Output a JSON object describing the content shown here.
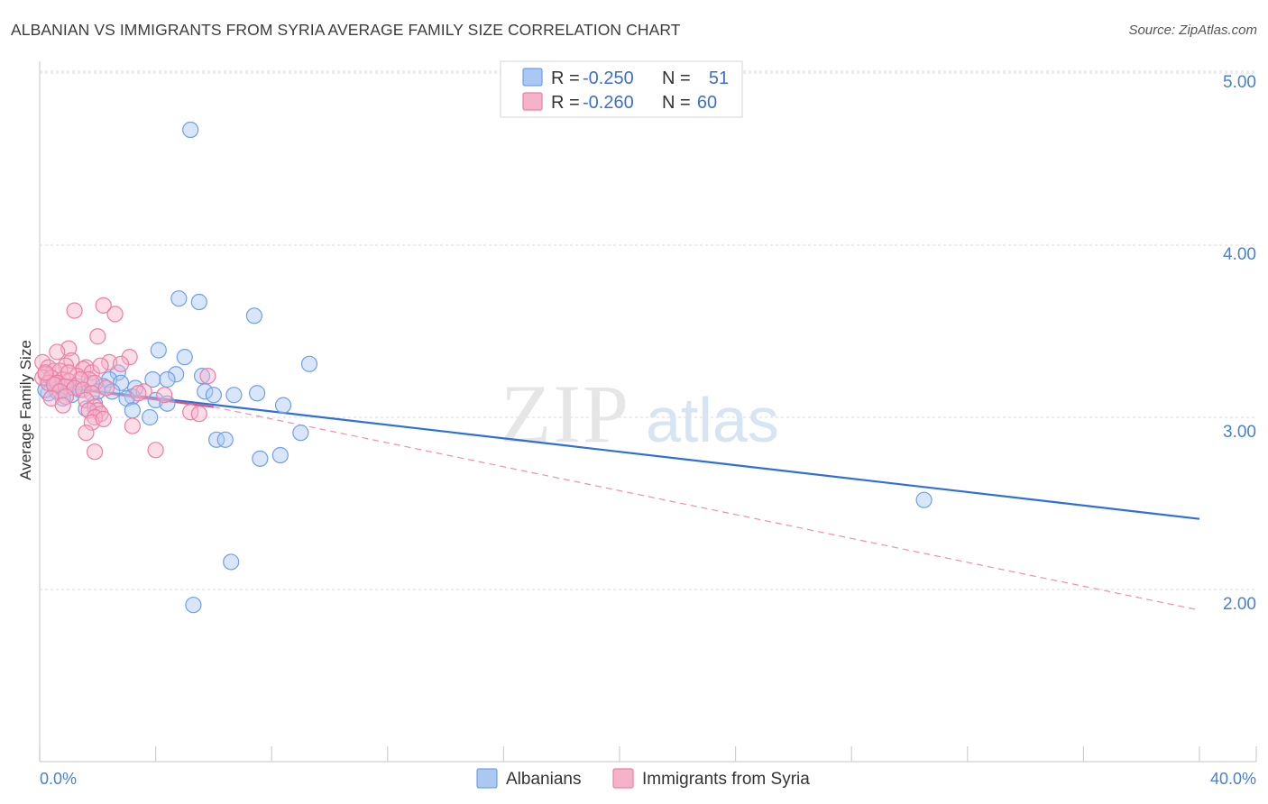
{
  "header": {
    "title": "ALBANIAN VS IMMIGRANTS FROM SYRIA AVERAGE FAMILY SIZE CORRELATION CHART",
    "source": "Source: ZipAtlas.com"
  },
  "watermark": {
    "zip": "ZIP",
    "atlas": "atlas"
  },
  "chart_data": {
    "type": "scatter",
    "title": "ALBANIAN VS IMMIGRANTS FROM SYRIA AVERAGE FAMILY SIZE CORRELATION CHART",
    "xlabel": "",
    "ylabel": "Average Family Size",
    "xlim": [
      0,
      40
    ],
    "ylim": [
      1.0,
      5.1
    ],
    "x_tick_labels": [
      "0.0%",
      "40.0%"
    ],
    "y_ticks": [
      2.0,
      3.0,
      4.0,
      5.0
    ],
    "y_tick_labels": [
      "2.00",
      "3.00",
      "4.00",
      "5.00"
    ],
    "grid": true,
    "legend_position": "top-center",
    "stats": [
      {
        "r_label": "R =",
        "r_value": "-0.250",
        "n_label": "N =",
        "n_value": "51"
      },
      {
        "r_label": "R =",
        "r_value": "-0.260",
        "n_label": "N =",
        "n_value": "60"
      }
    ],
    "series": [
      {
        "name": "Albanians",
        "color": "#6fa0e6",
        "fill": "#aac8f2",
        "trend": {
          "x0": 0.0,
          "y0": 3.19,
          "x1": 40.0,
          "y1": 2.41,
          "style": "solid",
          "color": "#2f6fd6"
        },
        "points": [
          [
            5.2,
            4.67
          ],
          [
            4.8,
            3.69
          ],
          [
            5.5,
            3.67
          ],
          [
            7.4,
            3.59
          ],
          [
            4.1,
            3.39
          ],
          [
            5.0,
            3.35
          ],
          [
            9.3,
            3.31
          ],
          [
            2.7,
            3.26
          ],
          [
            4.7,
            3.25
          ],
          [
            5.6,
            3.24
          ],
          [
            2.4,
            3.22
          ],
          [
            3.9,
            3.22
          ],
          [
            4.4,
            3.22
          ],
          [
            2.8,
            3.2
          ],
          [
            0.5,
            3.2
          ],
          [
            0.7,
            3.18
          ],
          [
            1.3,
            3.18
          ],
          [
            2.2,
            3.18
          ],
          [
            1.8,
            3.2
          ],
          [
            3.3,
            3.17
          ],
          [
            0.9,
            3.16
          ],
          [
            2.5,
            3.15
          ],
          [
            5.7,
            3.15
          ],
          [
            6.0,
            3.13
          ],
          [
            6.7,
            3.13
          ],
          [
            7.5,
            3.14
          ],
          [
            0.3,
            3.14
          ],
          [
            0.6,
            3.15
          ],
          [
            1.1,
            3.13
          ],
          [
            3.2,
            3.12
          ],
          [
            4.0,
            3.1
          ],
          [
            0.8,
            3.11
          ],
          [
            3.0,
            3.11
          ],
          [
            1.9,
            3.08
          ],
          [
            4.4,
            3.08
          ],
          [
            8.4,
            3.07
          ],
          [
            3.2,
            3.04
          ],
          [
            1.6,
            3.05
          ],
          [
            3.8,
            3.0
          ],
          [
            9.0,
            2.91
          ],
          [
            6.1,
            2.87
          ],
          [
            6.4,
            2.87
          ],
          [
            8.3,
            2.78
          ],
          [
            7.6,
            2.76
          ],
          [
            30.5,
            2.52
          ],
          [
            6.6,
            2.16
          ],
          [
            5.3,
            1.91
          ],
          [
            0.2,
            3.16
          ],
          [
            1.4,
            3.16
          ],
          [
            2.0,
            3.15
          ],
          [
            0.4,
            3.23
          ]
        ]
      },
      {
        "name": "Immigrants from Syria",
        "color": "#ec7fa4",
        "fill": "#f5b3ca",
        "trend": {
          "x0": 0.0,
          "y0": 3.19,
          "x1": 6.0,
          "y1": 3.06,
          "style": "solid",
          "color": "#e0507e",
          "ext_x1": 40.0,
          "ext_y1": 1.88,
          "ext_style": "dashed"
        },
        "points": [
          [
            2.2,
            3.65
          ],
          [
            1.2,
            3.62
          ],
          [
            2.6,
            3.6
          ],
          [
            2.0,
            3.47
          ],
          [
            1.0,
            3.4
          ],
          [
            0.6,
            3.38
          ],
          [
            3.1,
            3.35
          ],
          [
            0.1,
            3.32
          ],
          [
            1.1,
            3.33
          ],
          [
            2.4,
            3.32
          ],
          [
            2.8,
            3.31
          ],
          [
            0.9,
            3.3
          ],
          [
            1.6,
            3.29
          ],
          [
            0.3,
            3.29
          ],
          [
            1.5,
            3.28
          ],
          [
            0.5,
            3.27
          ],
          [
            0.7,
            3.27
          ],
          [
            1.8,
            3.26
          ],
          [
            2.1,
            3.3
          ],
          [
            0.2,
            3.25
          ],
          [
            1.3,
            3.24
          ],
          [
            0.1,
            3.23
          ],
          [
            0.4,
            3.23
          ],
          [
            0.8,
            3.22
          ],
          [
            1.7,
            3.22
          ],
          [
            5.8,
            3.24
          ],
          [
            1.4,
            3.22
          ],
          [
            0.3,
            3.2
          ],
          [
            0.6,
            3.2
          ],
          [
            1.0,
            3.21
          ],
          [
            1.9,
            3.2
          ],
          [
            0.5,
            3.19
          ],
          [
            0.9,
            3.18
          ],
          [
            1.2,
            3.17
          ],
          [
            2.3,
            3.17
          ],
          [
            1.5,
            3.16
          ],
          [
            3.6,
            3.15
          ],
          [
            0.7,
            3.15
          ],
          [
            1.8,
            3.14
          ],
          [
            3.4,
            3.14
          ],
          [
            4.3,
            3.13
          ],
          [
            0.9,
            3.12
          ],
          [
            0.4,
            3.11
          ],
          [
            1.6,
            3.1
          ],
          [
            0.8,
            3.07
          ],
          [
            1.9,
            3.06
          ],
          [
            2.0,
            3.04
          ],
          [
            1.7,
            3.04
          ],
          [
            5.2,
            3.03
          ],
          [
            5.5,
            3.02
          ],
          [
            2.1,
            3.02
          ],
          [
            1.9,
            3.0
          ],
          [
            1.8,
            2.97
          ],
          [
            2.2,
            2.99
          ],
          [
            3.2,
            2.95
          ],
          [
            1.6,
            2.91
          ],
          [
            4.0,
            2.81
          ],
          [
            1.9,
            2.8
          ],
          [
            0.2,
            3.26
          ],
          [
            1.0,
            3.26
          ]
        ]
      }
    ]
  },
  "colors": {
    "grid": "#d9d9d9",
    "axis": "#cfcfcf",
    "tick_text": "#4a7fd0"
  }
}
